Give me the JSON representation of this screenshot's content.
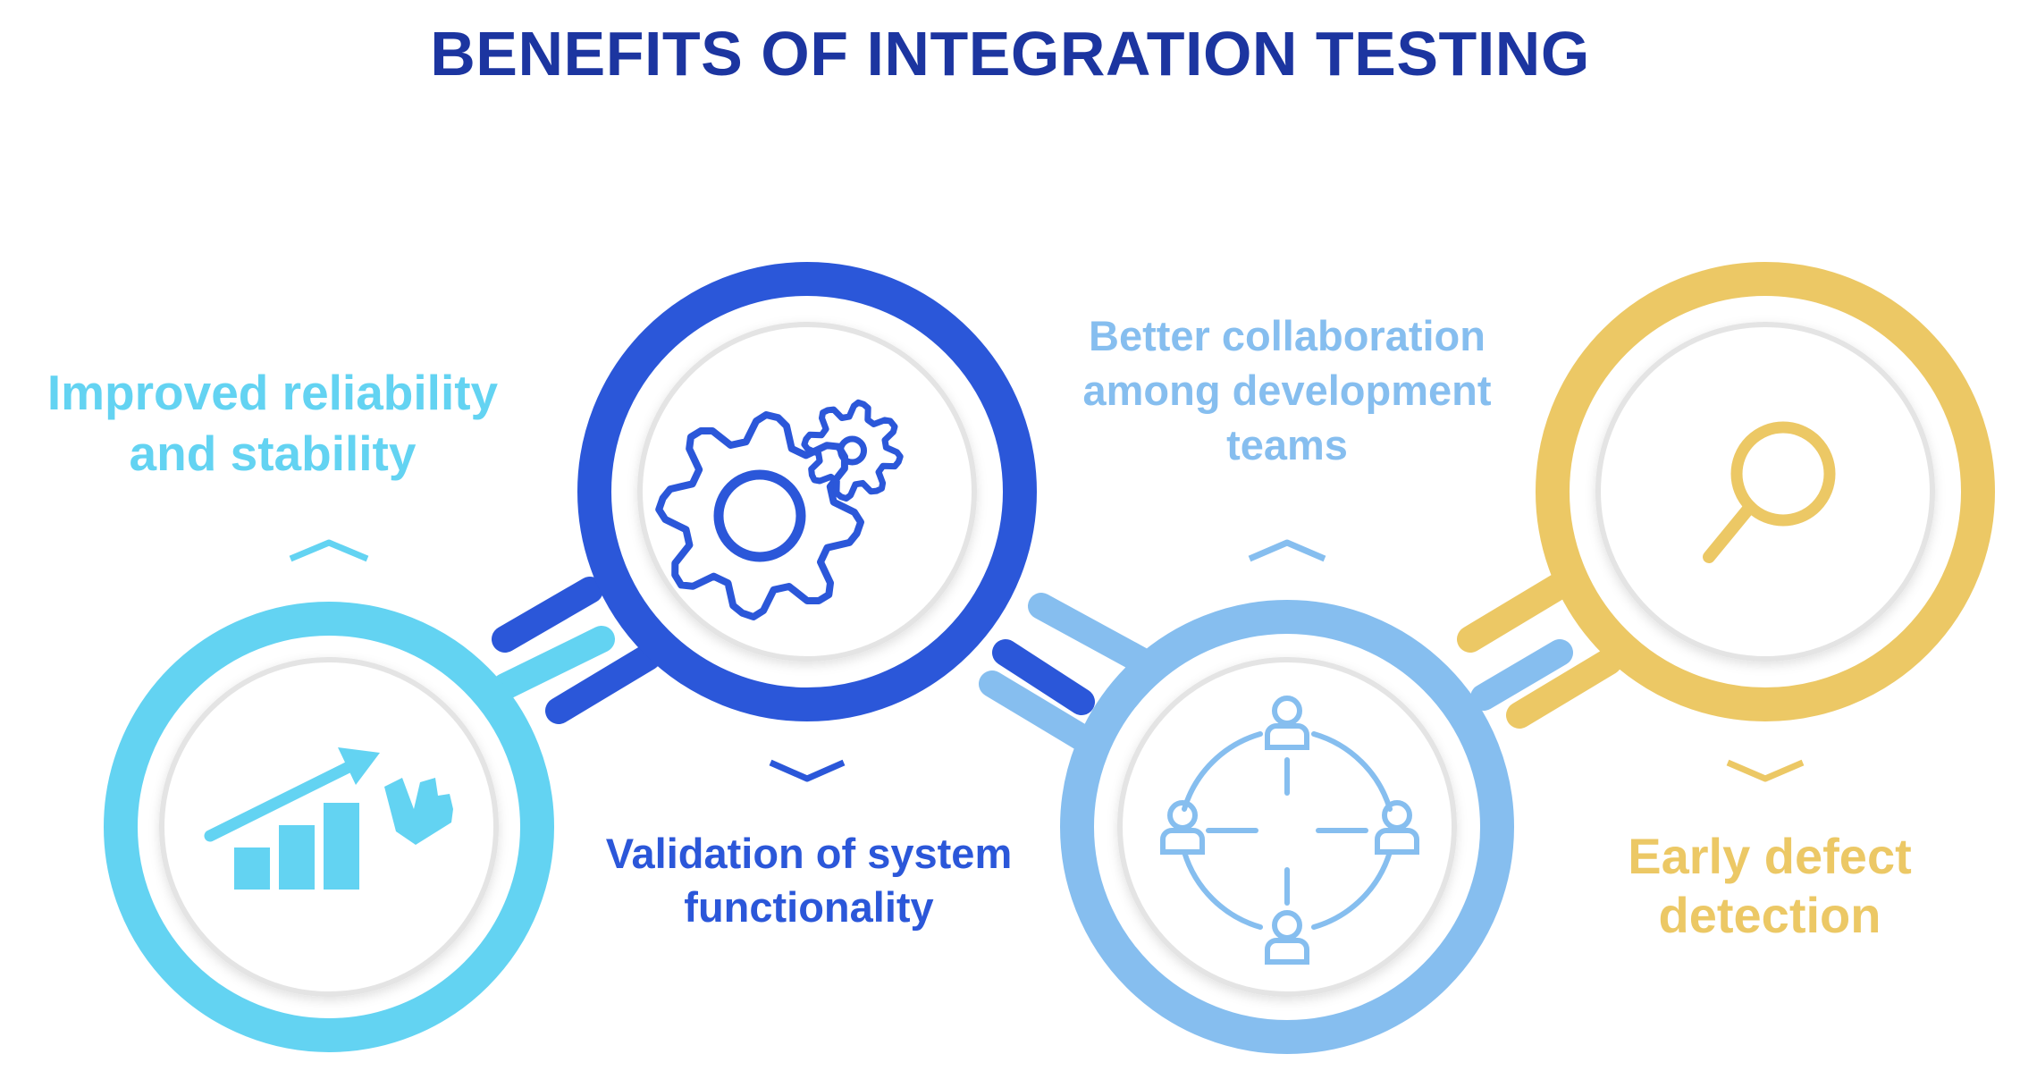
{
  "title": "BENEFITS OF INTEGRATION TESTING",
  "colors": {
    "title": "#1c35a0",
    "cyan": "#63d3f2",
    "blue": "#2b57d9",
    "light_blue": "#86beef",
    "yellow": "#ecc865",
    "inner_ring": "#e2e2e2"
  },
  "items": [
    {
      "label": "Improved reliability and stability",
      "icon": "growth-chart-icon",
      "color": "#63d3f2"
    },
    {
      "label": "Validation of system functionality",
      "icon": "gears-icon",
      "color": "#2b57d9"
    },
    {
      "label": "Better collaboration among development teams",
      "icon": "team-network-icon",
      "color": "#86beef"
    },
    {
      "label": "Early defect detection",
      "icon": "magnifier-icon",
      "color": "#ecc865"
    }
  ]
}
